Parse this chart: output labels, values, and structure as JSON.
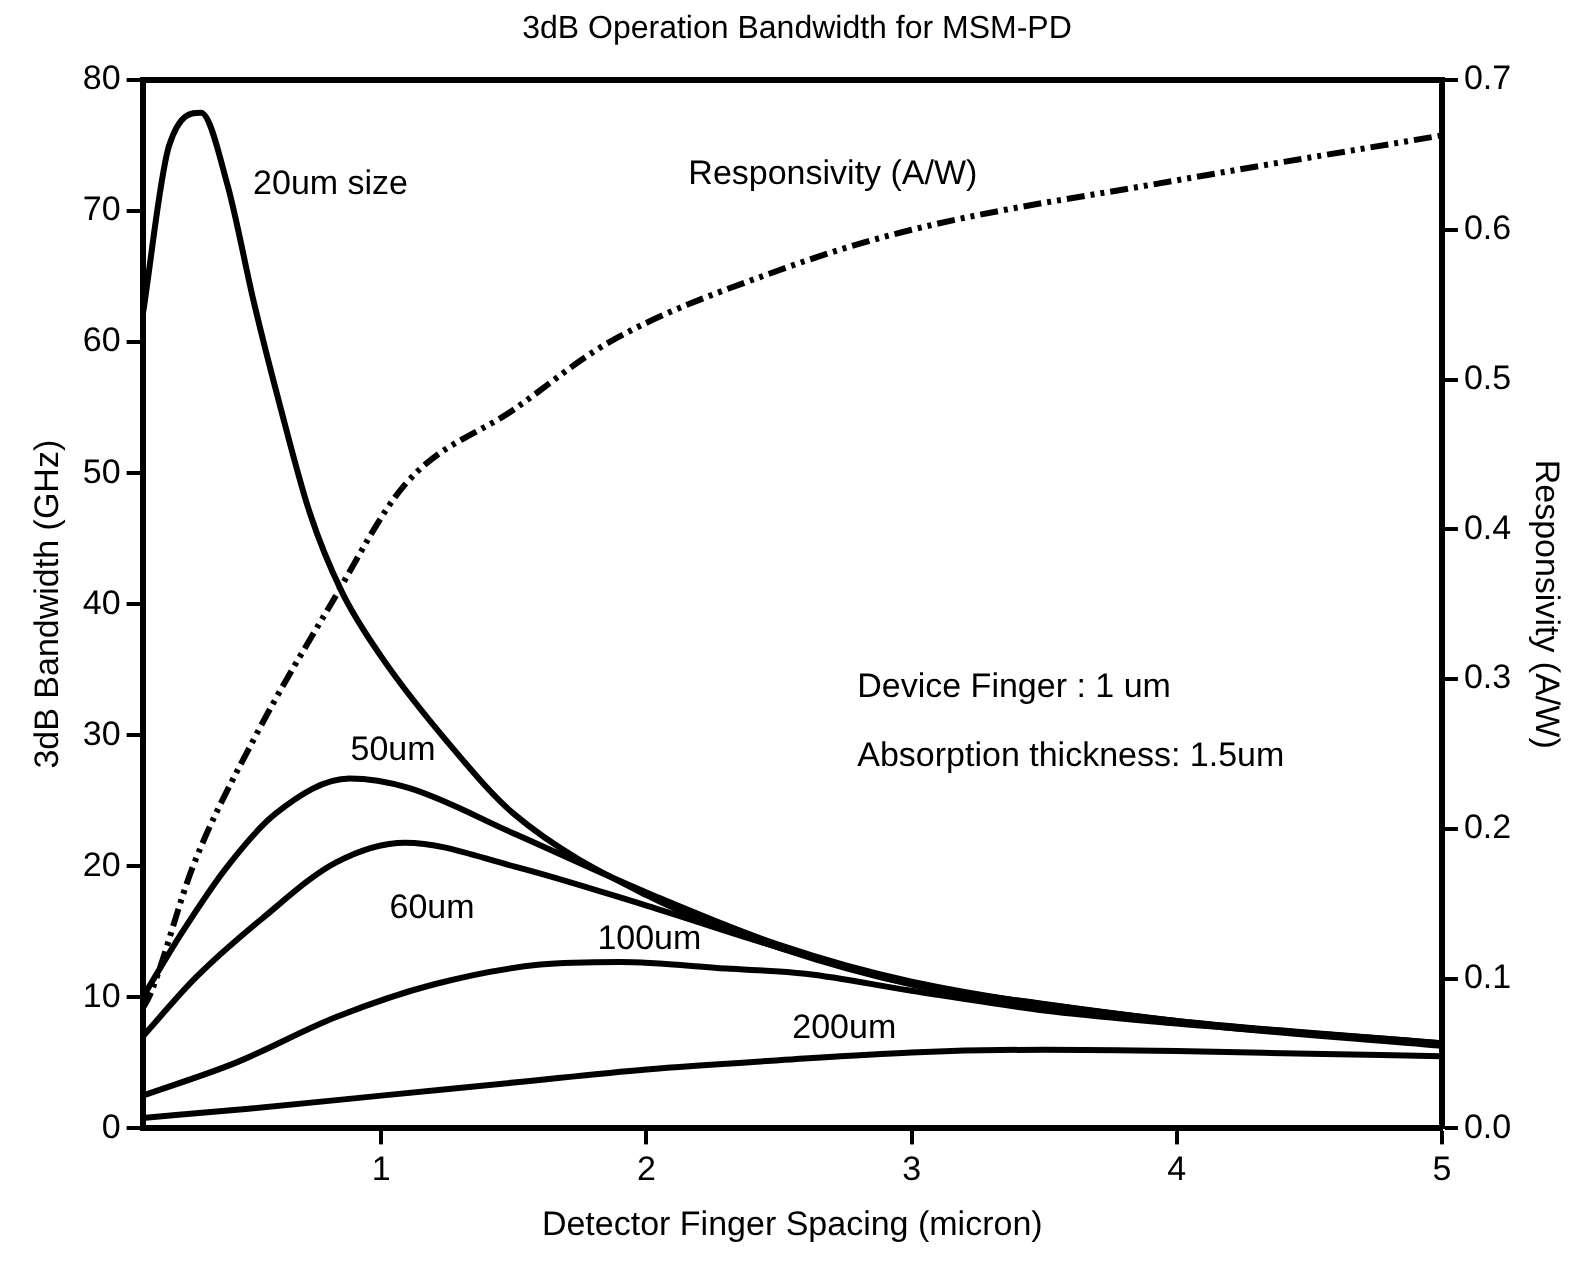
{
  "chart_data": {
    "type": "line",
    "title": "3dB Operation Bandwidth for MSM-PD",
    "xlabel": "Detector Finger Spacing (micron)",
    "ylabel": "3dB Bandwidth (GHz)",
    "y2label": "Responsivity (A/W)",
    "xlim": [
      0.1,
      5
    ],
    "xticks": [
      1,
      2,
      3,
      4,
      5
    ],
    "ylim": [
      0,
      80
    ],
    "yticks": [
      0,
      10,
      20,
      30,
      40,
      50,
      60,
      70,
      80
    ],
    "y2lim": [
      0,
      0.7
    ],
    "y2ticks": [
      {
        "value": 0,
        "label": "0.0"
      },
      0.1,
      0.2,
      0.3,
      0.4,
      0.5,
      0.6,
      0.7
    ],
    "grid": false,
    "legend": false,
    "marker": "none",
    "series": [
      {
        "name": "20um size",
        "color": "#000000",
        "line_style": "solid",
        "x": [
          0.1,
          0.2,
          0.32,
          0.42,
          0.52,
          0.62,
          0.73,
          0.85,
          1.0,
          1.27,
          1.5,
          2,
          2.5,
          3,
          3.5,
          4,
          4.5,
          5
        ],
        "values": [
          62,
          75,
          77.5,
          72,
          63,
          55,
          47,
          41,
          36,
          29,
          24,
          17.8,
          13.8,
          11,
          9.5,
          8.2,
          7.3,
          6.5
        ]
      },
      {
        "name": "50um",
        "color": "#000000",
        "line_style": "solid",
        "x": [
          0.1,
          0.25,
          0.42,
          0.6,
          0.88,
          1.1,
          1.5,
          2,
          2.5,
          3,
          4,
          5
        ],
        "values": [
          10,
          15,
          20,
          24,
          26.7,
          26,
          22.5,
          18,
          14,
          11.2,
          8.2,
          6.5
        ]
      },
      {
        "name": "60um",
        "color": "#000000",
        "line_style": "solid",
        "x": [
          0.1,
          0.3,
          0.55,
          0.83,
          1.09,
          1.5,
          2,
          2.5,
          3,
          4,
          5
        ],
        "values": [
          7,
          11.5,
          16,
          20.3,
          21.8,
          20,
          17,
          13.8,
          11,
          8.1,
          6.3
        ]
      },
      {
        "name": "100um",
        "color": "#000000",
        "line_style": "solid",
        "x": [
          0.1,
          0.45,
          0.83,
          1.2,
          1.6,
          1.9,
          2.3,
          2.6,
          3,
          3.5,
          4,
          4.5,
          5
        ],
        "values": [
          2.5,
          5,
          8.5,
          11,
          12.5,
          12.7,
          12.2,
          11.8,
          10.5,
          9,
          8,
          7.2,
          6.4
        ]
      },
      {
        "name": "200um",
        "color": "#000000",
        "line_style": "solid",
        "x": [
          0.1,
          0.5,
          1,
          1.5,
          2,
          2.5,
          3,
          3.5,
          4,
          4.5,
          5
        ],
        "values": [
          0.8,
          1.5,
          2.5,
          3.5,
          4.5,
          5.2,
          5.8,
          6,
          5.9,
          5.7,
          5.5
        ]
      },
      {
        "name": "Responsivity (A/W)",
        "color": "#000000",
        "line_style": "dashed",
        "axis": "y2",
        "x": [
          0.1,
          0.13,
          0.29,
          0.52,
          0.81,
          1.09,
          1.5,
          1.86,
          2.5,
          3,
          4,
          5
        ],
        "values": [
          0.08,
          0.09,
          0.175,
          0.26,
          0.35,
          0.43,
          0.48,
          0.525,
          0.573,
          0.6,
          0.633,
          0.663
        ]
      }
    ],
    "annotations": [
      "Device Finger : 1 um",
      "Absorption thickness: 1.5um"
    ]
  }
}
